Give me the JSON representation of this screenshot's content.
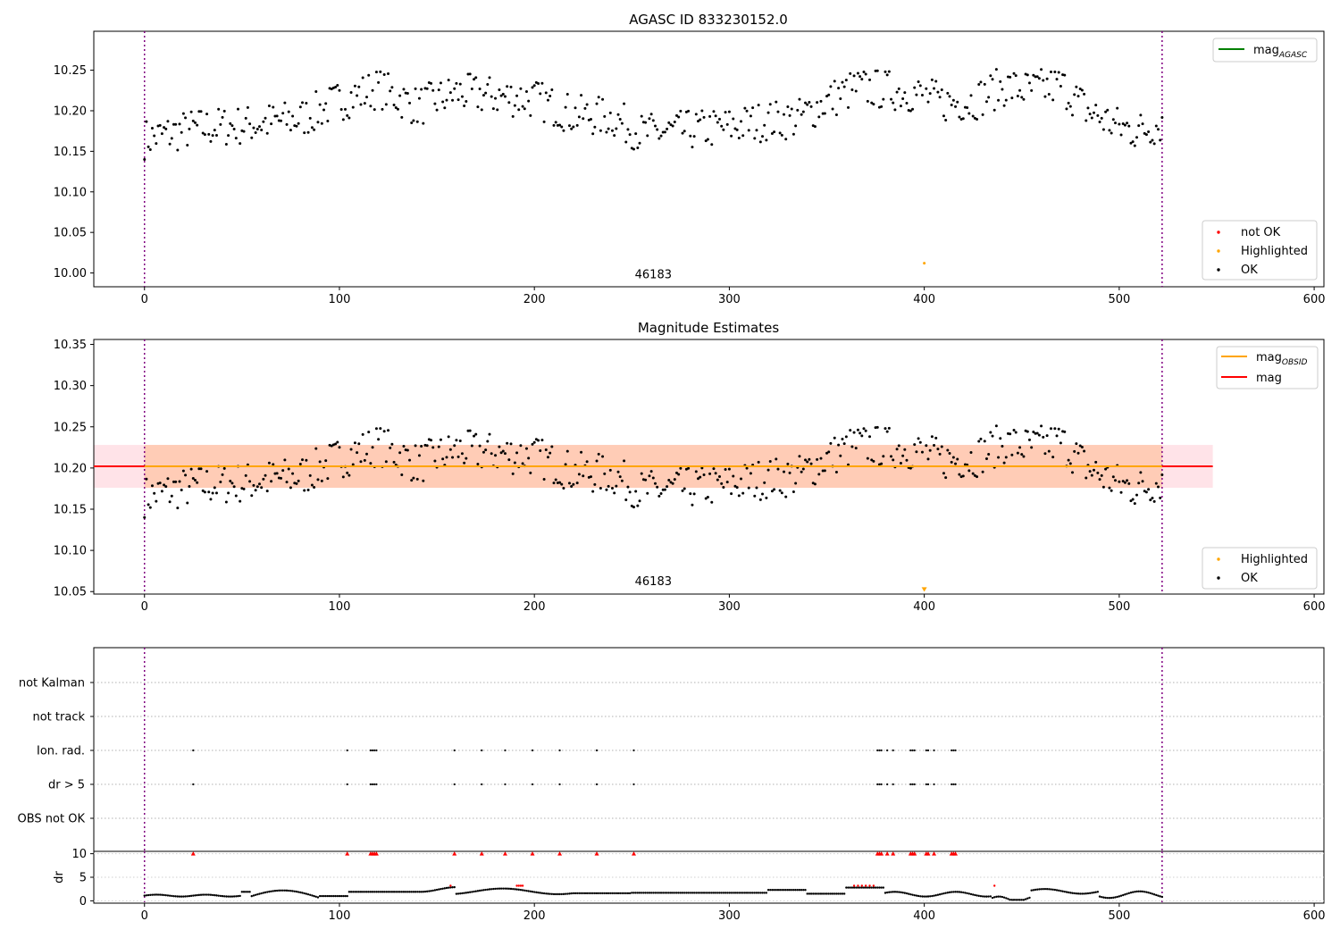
{
  "chart_data": [
    {
      "type": "scatter",
      "title": "AGASC ID 833230152.0",
      "xlabel": "",
      "ylabel": "",
      "xlim": [
        -26,
        605
      ],
      "ylim": [
        9.983,
        10.298
      ],
      "xticks": [
        0,
        100,
        200,
        300,
        400,
        500,
        600
      ],
      "xtick_labels": [
        "0",
        "100",
        "200",
        "300",
        "400",
        "500",
        "600"
      ],
      "yticks": [
        10.0,
        10.05,
        10.1,
        10.15,
        10.2,
        10.25
      ],
      "ytick_labels": [
        "10.00",
        "10.05",
        "10.10",
        "10.15",
        "10.20",
        "10.25"
      ],
      "vlines": [
        0,
        522
      ],
      "annotation": {
        "text": "46183",
        "x": 261,
        "y": 9.998
      },
      "series": [
        {
          "name": "not OK",
          "color": "#ff0000",
          "x": [],
          "y": []
        },
        {
          "name": "Highlighted",
          "color": "#ffa500",
          "x": [
            400
          ],
          "y": [
            10.012
          ]
        },
        {
          "name": "OK",
          "color": "#000000",
          "x": [],
          "y": []
        }
      ],
      "legends": [
        {
          "position": "upper-right",
          "entries": [
            {
              "label": "mag",
              "sub": "AGASC",
              "color": "#008000",
              "kind": "line"
            }
          ]
        },
        {
          "position": "lower-right",
          "entries": [
            {
              "label": "not OK",
              "color": "#ff0000",
              "kind": "dot"
            },
            {
              "label": "Highlighted",
              "color": "#ffa500",
              "kind": "dot"
            },
            {
              "label": "OK",
              "color": "#000000",
              "kind": "dot"
            }
          ]
        }
      ]
    },
    {
      "type": "scatter",
      "title": "Magnitude Estimates",
      "xlabel": "",
      "ylabel": "",
      "xlim": [
        -26,
        605
      ],
      "ylim": [
        10.047,
        10.356
      ],
      "xticks": [
        0,
        100,
        200,
        300,
        400,
        500,
        600
      ],
      "xtick_labels": [
        "0",
        "100",
        "200",
        "300",
        "400",
        "500",
        "600"
      ],
      "yticks": [
        10.05,
        10.1,
        10.15,
        10.2,
        10.25,
        10.3,
        10.35
      ],
      "ytick_labels": [
        "10.05",
        "10.10",
        "10.15",
        "10.20",
        "10.25",
        "10.30",
        "10.35"
      ],
      "vlines": [
        0,
        522
      ],
      "annotation": {
        "text": "46183",
        "x": 261,
        "y": 10.062
      },
      "hlines": [
        {
          "name": "mag",
          "y": 10.202,
          "color": "#ff0000",
          "x0": -26,
          "x1": 548
        },
        {
          "name": "mag_OBSID",
          "y": 10.202,
          "color": "#ffa500",
          "x0": 0,
          "x1": 522
        }
      ],
      "bands": [
        {
          "y0": 10.176,
          "y1": 10.228,
          "x0": -26,
          "x1": 548,
          "color": "#ffc0cb"
        },
        {
          "y0": 10.176,
          "y1": 10.228,
          "x0": 0,
          "x1": 522,
          "color": "#ffb07a"
        }
      ],
      "series": [
        {
          "name": "Highlighted",
          "color": "#ffa500",
          "x": [
            400
          ],
          "y": [
            10.052
          ]
        },
        {
          "name": "OK",
          "color": "#000000",
          "x": [],
          "y": []
        }
      ],
      "legends": [
        {
          "position": "upper-right",
          "entries": [
            {
              "label": "mag",
              "sub": "OBSID",
              "color": "#ffa500",
              "kind": "line"
            },
            {
              "label": "mag",
              "color": "#ff0000",
              "kind": "line"
            }
          ]
        },
        {
          "position": "lower-right",
          "entries": [
            {
              "label": "Highlighted",
              "color": "#ffa500",
              "kind": "dot"
            },
            {
              "label": "OK",
              "color": "#000000",
              "kind": "dot"
            }
          ]
        }
      ]
    },
    {
      "type": "scatter",
      "title": "",
      "xlim": [
        -26,
        605
      ],
      "categories": [
        "not Kalman",
        "not track",
        "Ion. rad.",
        "dr > 5",
        "OBS not OK"
      ],
      "vlines": [
        0,
        522
      ],
      "flag_x": {
        "not Kalman": [],
        "not track": [],
        "Ion. rad.": [
          25,
          104,
          116,
          117,
          118,
          119,
          159,
          173,
          185,
          199,
          213,
          232,
          251,
          376,
          377,
          378,
          381,
          384,
          393,
          394,
          395,
          401,
          402,
          405,
          414,
          415,
          416
        ],
        "dr > 5": [
          25,
          104,
          116,
          117,
          118,
          119,
          159,
          173,
          185,
          199,
          213,
          232,
          251,
          376,
          377,
          378,
          381,
          384,
          393,
          394,
          395,
          401,
          402,
          405,
          414,
          415,
          416
        ],
        "OBS not OK": []
      }
    },
    {
      "type": "scatter",
      "title": "",
      "xlabel": "",
      "ylabel": "dr",
      "xlim": [
        -26,
        605
      ],
      "ylim": [
        -0.5,
        10.5
      ],
      "xticks": [
        0,
        100,
        200,
        300,
        400,
        500,
        600
      ],
      "xtick_labels": [
        "0",
        "100",
        "200",
        "300",
        "400",
        "500",
        "600"
      ],
      "yticks": [
        0,
        5,
        10
      ],
      "ytick_labels": [
        "0",
        "5",
        "10"
      ],
      "vlines": [
        0,
        522
      ],
      "clip_marker_y": 10,
      "series": [
        {
          "name": "dr",
          "color": "#000000"
        },
        {
          "name": "dr > 5",
          "color": "#ff0000"
        }
      ]
    }
  ]
}
